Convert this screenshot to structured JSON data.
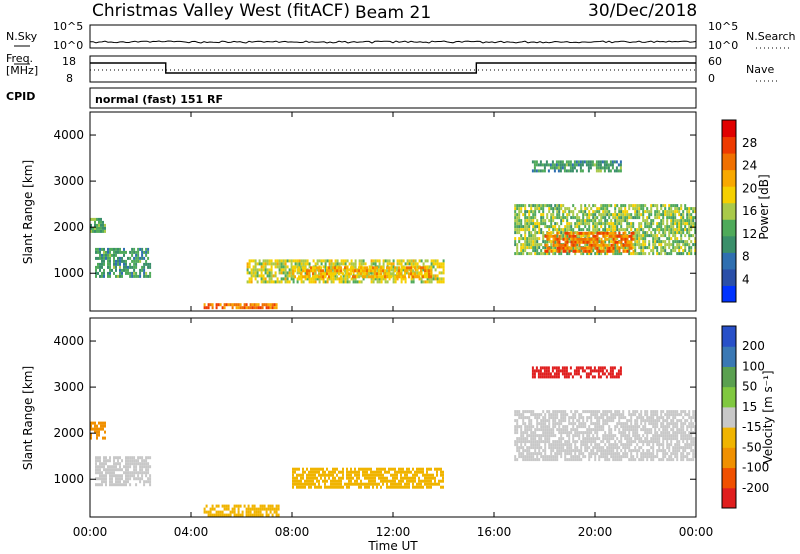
{
  "header": {
    "site": "Christmas Valley West (fitACF)",
    "beam": "Beam 21",
    "date": "30/Dec/2018"
  },
  "panels": {
    "nsky": {
      "label": "N.Sky",
      "ytick_top": "10^5",
      "ytick_bottom": "10^0",
      "right_label": "N.Search",
      "right_top": "10^5",
      "right_bottom": "10^0"
    },
    "freq": {
      "label_line1": "Freq.",
      "label_line2": "[MHz]",
      "ytick_top": "18",
      "ytick_bottom": "8",
      "right_label": "Nave",
      "right_top": "60",
      "right_bottom": "0"
    },
    "cpid": {
      "label": "CPID",
      "value": "normal (fast) 151 RF"
    }
  },
  "colors": {
    "power_scale": [
      "#0033ff",
      "#2a4fa8",
      "#2f6fb0",
      "#3a8f6a",
      "#4faa5a",
      "#a9c94a",
      "#f5d000",
      "#f8a800",
      "#f07000",
      "#ee3a00",
      "#e00000"
    ],
    "velocity_scale": [
      "#2850c8",
      "#3a78b4",
      "#5aa050",
      "#80c840",
      "#c8c8c8",
      "#f0b400",
      "#f09000",
      "#f05000",
      "#e01e1e"
    ],
    "ground_scatter": "#b4b4b4"
  },
  "chart_data": [
    {
      "type": "heatmap",
      "name": "power",
      "xlabel": "",
      "ylabel": "Slant Range [km]",
      "xlim_hours": [
        0,
        24
      ],
      "ylim": [
        180,
        4500
      ],
      "yticks": [
        "1000",
        "2000",
        "3000",
        "4000"
      ],
      "colorbar": {
        "label": "Power [dB]",
        "ticks": [
          "4",
          "8",
          "12",
          "16",
          "20",
          "24",
          "28"
        ],
        "range": [
          0,
          30
        ]
      },
      "features": [
        {
          "t0": 0.2,
          "t1": 2.4,
          "r0": 900,
          "r1": 1550,
          "value": 10
        },
        {
          "t0": 0.0,
          "t1": 0.6,
          "r0": 1900,
          "r1": 2200,
          "value": 12
        },
        {
          "t0": 6.2,
          "t1": 14.0,
          "r0": 800,
          "r1": 1300,
          "value": 16
        },
        {
          "t0": 8.0,
          "t1": 13.5,
          "r0": 900,
          "r1": 1150,
          "value": 20
        },
        {
          "t0": 4.5,
          "t1": 7.5,
          "r0": 250,
          "r1": 350,
          "value": 24
        },
        {
          "t0": 16.8,
          "t1": 24.0,
          "r0": 1400,
          "r1": 2500,
          "value": 14
        },
        {
          "t0": 18.0,
          "t1": 21.5,
          "r0": 1500,
          "r1": 1900,
          "value": 24
        },
        {
          "t0": 17.5,
          "t1": 21.0,
          "r0": 3200,
          "r1": 3450,
          "value": 10
        }
      ]
    },
    {
      "type": "heatmap",
      "name": "velocity",
      "xlabel": "Time UT",
      "ylabel": "Slant Range [km]",
      "xlim_hours": [
        0,
        24
      ],
      "ylim": [
        180,
        4500
      ],
      "xticks": [
        "00:00",
        "04:00",
        "08:00",
        "12:00",
        "16:00",
        "20:00",
        "00:00"
      ],
      "yticks": [
        "1000",
        "2000",
        "3000",
        "4000"
      ],
      "colorbar": {
        "label": "Velocity [m s⁻¹]",
        "ticks": [
          "200",
          "100",
          "50",
          "15",
          "-15",
          "-50",
          "-100",
          "-200"
        ]
      },
      "features": [
        {
          "t0": 0.2,
          "t1": 2.4,
          "r0": 900,
          "r1": 1500,
          "value": 0
        },
        {
          "t0": 0.0,
          "t1": 0.6,
          "r0": 1900,
          "r1": 2250,
          "value": -60
        },
        {
          "t0": 8.0,
          "t1": 14.0,
          "r0": 850,
          "r1": 1250,
          "value": -30
        },
        {
          "t0": 4.5,
          "t1": 7.5,
          "r0": 250,
          "r1": 450,
          "value": -40
        },
        {
          "t0": 16.8,
          "t1": 24.0,
          "r0": 1400,
          "r1": 2500,
          "value": 0
        },
        {
          "t0": 17.5,
          "t1": 21.0,
          "r0": 3200,
          "r1": 3450,
          "value": -250
        }
      ]
    }
  ]
}
